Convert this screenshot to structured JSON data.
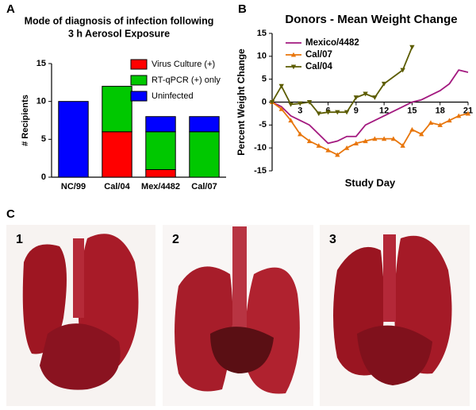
{
  "panel_labels": [
    "A",
    "B",
    "C"
  ],
  "photo_labels": [
    "1",
    "2",
    "3"
  ],
  "chart_data": [
    {
      "type": "bar",
      "stacked": true,
      "title": [
        "Mode of diagnosis of infection following",
        "3 h  Aerosol Exposure"
      ],
      "ylabel": "# Recipients",
      "categories": [
        "NC/99",
        "Cal/04",
        "Mex/4482",
        "Cal/07"
      ],
      "series": [
        {
          "name": "Virus Culture (+)",
          "color": "#ff0000",
          "values": [
            0,
            6,
            1,
            0
          ]
        },
        {
          "name": "RT-qPCR (+) only",
          "color": "#00c800",
          "values": [
            0,
            6,
            5,
            6
          ]
        },
        {
          "name": "Uninfected",
          "color": "#0000ff",
          "values": [
            10,
            0,
            2,
            2
          ]
        }
      ],
      "ylim": [
        0,
        15
      ],
      "yticks": [
        0,
        5,
        10,
        15
      ],
      "legend": "top-right"
    },
    {
      "type": "line",
      "title": "Donors - Mean Weight Change",
      "ylabel": "Percent Weight Change",
      "xlabel": "Study Day",
      "series": [
        {
          "name": "Mexico/4482",
          "color": "#a3197f",
          "marker": "none",
          "x": [
            0,
            1,
            2,
            3,
            4,
            5,
            6,
            7,
            8,
            9,
            10,
            11,
            12,
            13,
            14,
            15,
            16,
            17,
            18,
            19,
            20,
            21
          ],
          "values": [
            0,
            -1,
            -3,
            -4,
            -5,
            -7,
            -9,
            -8.5,
            -7.5,
            -7.5,
            -5,
            -4,
            -3,
            -2,
            -1,
            0,
            0.5,
            1.5,
            2.5,
            4,
            7,
            6.5
          ]
        },
        {
          "name": "Cal/07",
          "color": "#e8760c",
          "marker": "triangle-up",
          "x": [
            0,
            1,
            2,
            3,
            4,
            5,
            6,
            7,
            8,
            9,
            10,
            11,
            12,
            13,
            14,
            15,
            16,
            17,
            18,
            19,
            20,
            21
          ],
          "values": [
            0,
            -1.5,
            -4,
            -7,
            -8.5,
            -9.5,
            -10.5,
            -11.5,
            -10,
            -9,
            -8.5,
            -8,
            -8,
            -8,
            -9.5,
            -6,
            -7,
            -4.5,
            -5,
            -4,
            -3,
            -2.5
          ]
        },
        {
          "name": "Cal/04",
          "color": "#5c5c00",
          "marker": "triangle-down",
          "x": [
            0,
            1,
            2,
            3,
            4,
            5,
            6,
            7,
            8,
            9,
            10,
            11,
            12,
            14,
            15
          ],
          "values": [
            0,
            3.5,
            -0.5,
            -0.3,
            0,
            -2.5,
            -2.2,
            -2.2,
            -2.2,
            1,
            1.8,
            1,
            4,
            7,
            12
          ]
        }
      ],
      "xlim": [
        0,
        21
      ],
      "xticks": [
        3,
        6,
        9,
        12,
        15,
        18,
        21
      ],
      "ylim": [
        -15,
        15
      ],
      "yticks": [
        -15,
        -10,
        -5,
        0,
        5,
        10,
        15
      ],
      "legend": "top-left"
    }
  ]
}
